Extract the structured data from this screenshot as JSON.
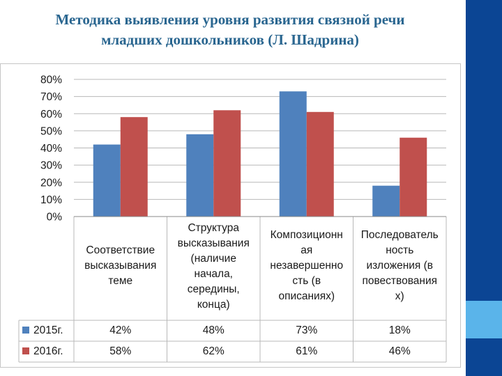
{
  "slide": {
    "title_line1": "Методика выявления уровня развития связной речи",
    "title_line2": "младших дошкольников (Л. Шадрина)"
  },
  "colors": {
    "title": "#2a6690",
    "sidebar": "#0b4594",
    "sidebar_accent": "#5ab4ea",
    "series_2015": "#4f81bd",
    "series_2016": "#c0504d",
    "grid": "#b8b8b8"
  },
  "chart_data": {
    "type": "bar",
    "ylim": [
      0,
      80
    ],
    "yticks": [
      "0%",
      "10%",
      "20%",
      "30%",
      "40%",
      "50%",
      "60%",
      "70%",
      "80%"
    ],
    "categories": [
      "Соответствие\nвысказывания\nтеме",
      "Структура\nвысказывания\n(наличие\nначала,\nсередины,\nконца)",
      "Композиционн\nая\nнезавершенно\nсть (в\nописаниях)",
      "Последователь\nность\nизложения (в\nповествования\nх)"
    ],
    "series": [
      {
        "name": "2015г.",
        "values": [
          42,
          48,
          73,
          18
        ],
        "labels": [
          "42%",
          "48%",
          "73%",
          "18%"
        ],
        "color": "#4f81bd"
      },
      {
        "name": "2016г.",
        "values": [
          58,
          62,
          61,
          46
        ],
        "labels": [
          "58%",
          "62%",
          "61%",
          "46%"
        ],
        "color": "#c0504d"
      }
    ],
    "grid": true,
    "legend": "data-table"
  }
}
